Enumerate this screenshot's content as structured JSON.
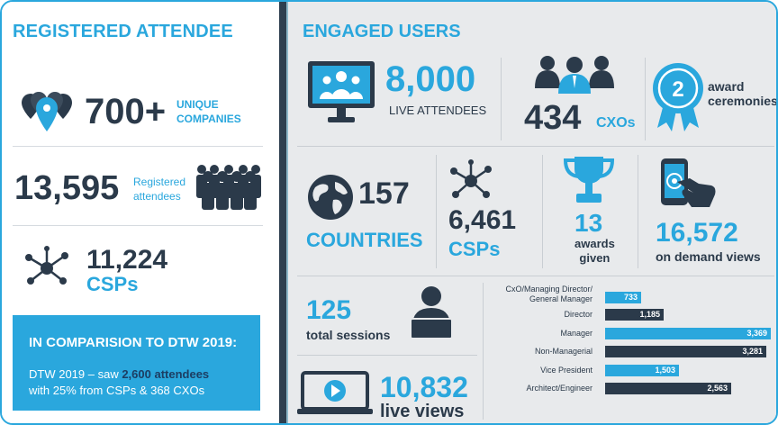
{
  "left": {
    "title": "REGISTERED ATTENDEE",
    "companies": {
      "value": "700+",
      "label_line1": "UNIQUE",
      "label_line2": "COMPANIES"
    },
    "registered": {
      "value": "13,595",
      "label_line1": "Registered",
      "label_line2": "attendees"
    },
    "csps": {
      "value": "11,224",
      "label": "CSPs"
    },
    "comparison": {
      "title": "IN COMPARISION TO DTW 2019:",
      "line1_a": "DTW 2019 – saw ",
      "line1_b": "2,600 attendees",
      "line2_a": "with 25%  from CSPs & 368 CXOs"
    }
  },
  "right": {
    "title": "ENGAGED USERS",
    "live_attendees": {
      "value": "8,000",
      "label": "LIVE ATTENDEES"
    },
    "cxos": {
      "value": "434",
      "label": "CXOs"
    },
    "award_ceremonies": {
      "badge": "2",
      "label_line1": "award",
      "label_line2": "ceremonies"
    },
    "countries": {
      "value": "157",
      "label": "COUNTRIES"
    },
    "csps": {
      "value": "6,461",
      "label": "CSPs"
    },
    "awards": {
      "value": "13",
      "label_line1": "awards",
      "label_line2": "given"
    },
    "on_demand": {
      "value": "16,572",
      "label": "on demand views"
    },
    "sessions": {
      "value": "125",
      "label": "total sessions"
    },
    "live_views": {
      "value": "10,832",
      "label": "live views"
    }
  },
  "chart_data": {
    "type": "bar",
    "orientation": "horizontal",
    "categories": [
      "CxO/Managing Director/ General Manager",
      "Director",
      "Manager",
      "Non-Managerial",
      "Vice President",
      "Architect/Engineer"
    ],
    "values": [
      733,
      1185,
      3369,
      3281,
      1503,
      2563
    ],
    "value_labels": [
      "733",
      "1,185",
      "3,369",
      "3,281",
      "1,503",
      "2,563"
    ],
    "colors": [
      "#2aa7dd",
      "#2b3a4a",
      "#2aa7dd",
      "#2b3a4a",
      "#2aa7dd",
      "#2b3a4a"
    ],
    "xlim": [
      0,
      3369
    ]
  },
  "colors": {
    "accent": "#2aa7dd",
    "dark": "#2b3a4a",
    "panel": "#e8eaec"
  }
}
